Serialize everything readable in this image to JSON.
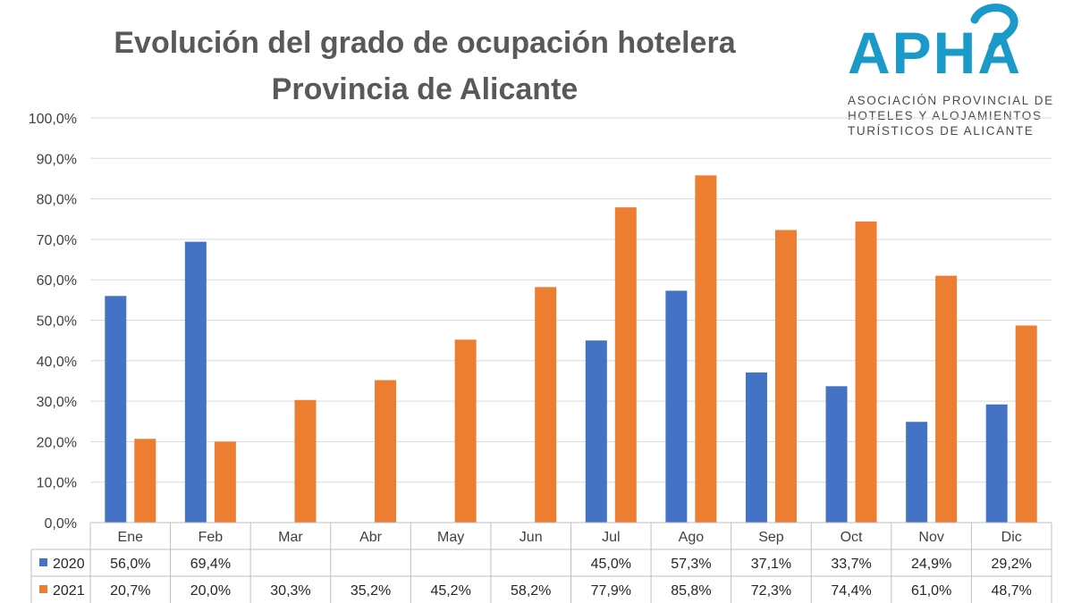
{
  "title_line1": "Evolución del grado de ocupación hotelera",
  "title_line2": "Provincia de Alicante",
  "logo": {
    "name": "APHA",
    "line1": "ASOCIACIÓN PROVINCIAL DE",
    "line2": "HOTELES Y ALOJAMIENTOS",
    "line3": "TURÍSTICOS DE ALICANTE",
    "color": "#1a9ac9"
  },
  "chart_data": {
    "type": "bar",
    "title": "Evolución del grado de ocupación hotelera Provincia de Alicante",
    "categories": [
      "Ene",
      "Feb",
      "Mar",
      "Abr",
      "May",
      "Jun",
      "Jul",
      "Ago",
      "Sep",
      "Oct",
      "Nov",
      "Dic"
    ],
    "series": [
      {
        "name": "2020",
        "color": "#4472c4",
        "values": [
          56.0,
          69.4,
          null,
          null,
          null,
          null,
          45.0,
          57.3,
          37.1,
          33.7,
          24.9,
          29.2
        ],
        "labels": [
          "56,0%",
          "69,4%",
          "",
          "",
          "",
          "",
          "45,0%",
          "57,3%",
          "37,1%",
          "33,7%",
          "24,9%",
          "29,2%"
        ]
      },
      {
        "name": "2021",
        "color": "#ed7d31",
        "values": [
          20.7,
          20.0,
          30.3,
          35.2,
          45.2,
          58.2,
          77.9,
          85.8,
          72.3,
          74.4,
          61.0,
          48.7
        ],
        "labels": [
          "20,7%",
          "20,0%",
          "30,3%",
          "35,2%",
          "45,2%",
          "58,2%",
          "77,9%",
          "85,8%",
          "72,3%",
          "74,4%",
          "61,0%",
          "48,7%"
        ]
      }
    ],
    "ylim": [
      0,
      100
    ],
    "yticks": [
      0,
      10,
      20,
      30,
      40,
      50,
      60,
      70,
      80,
      90,
      100
    ],
    "ytick_labels": [
      "0,0%",
      "10,0%",
      "20,0%",
      "30,0%",
      "40,0%",
      "50,0%",
      "60,0%",
      "70,0%",
      "80,0%",
      "90,0%",
      "100,0%"
    ],
    "grid": true,
    "legend": "data-table"
  }
}
